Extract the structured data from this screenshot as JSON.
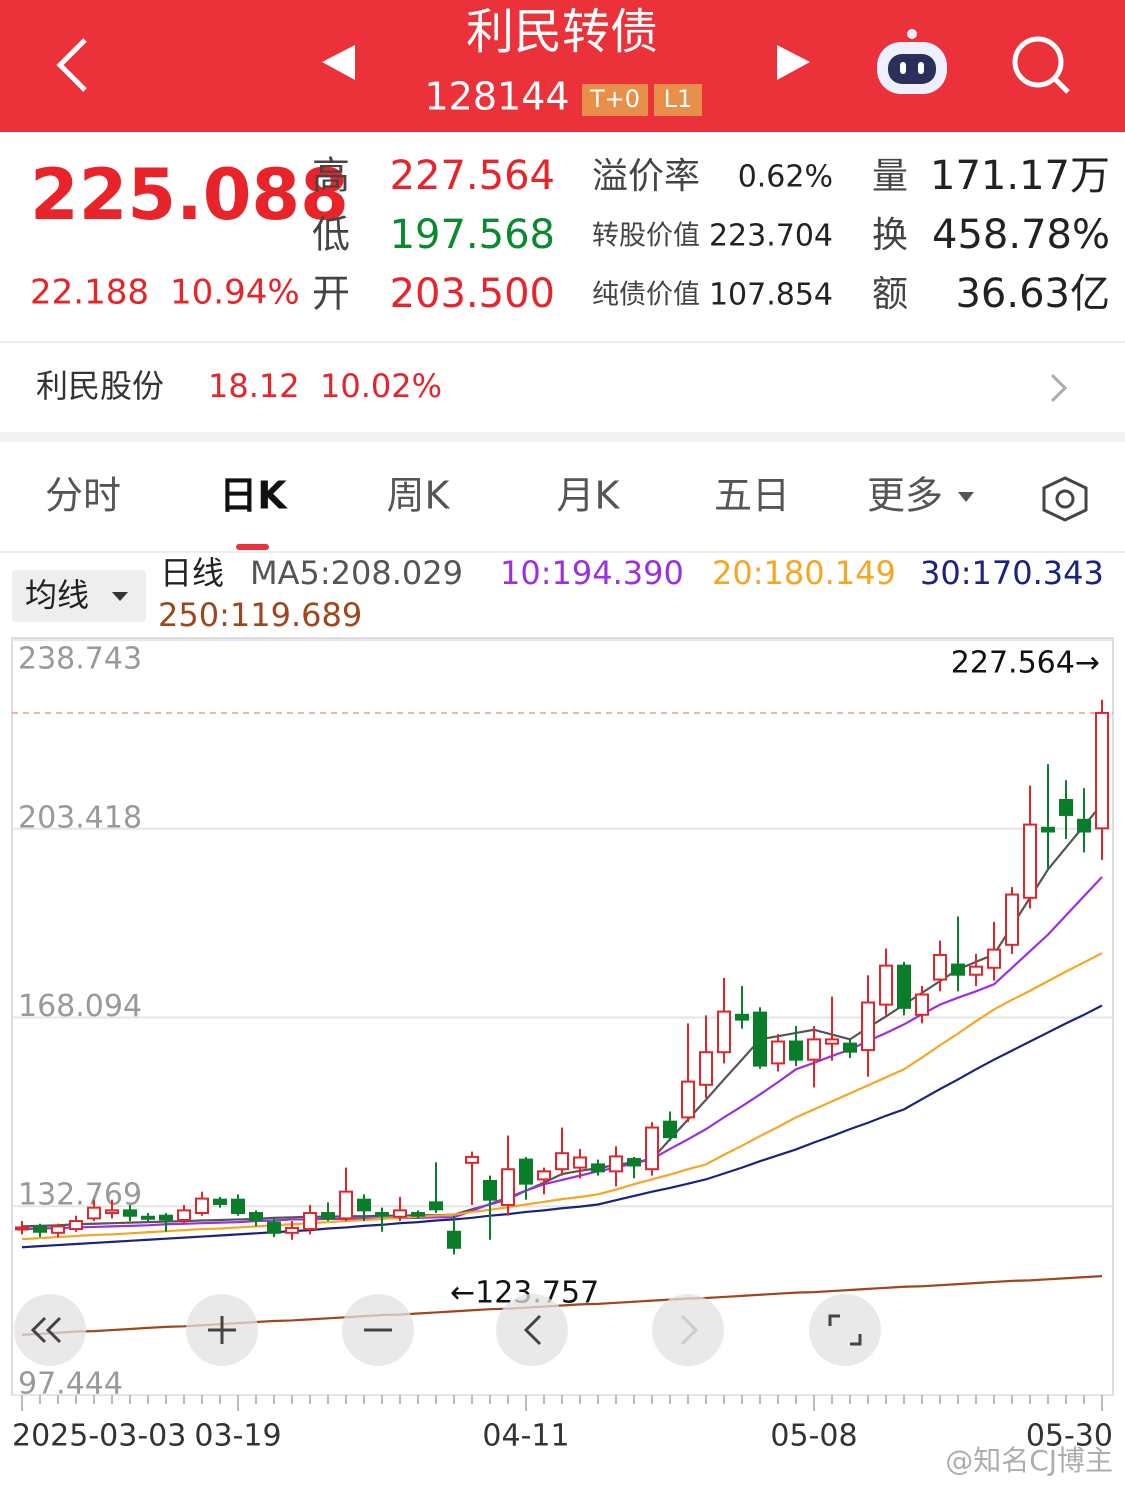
{
  "header": {
    "title": "利民转债",
    "code": "128144",
    "tags": [
      "T+0",
      "L1"
    ]
  },
  "quote": {
    "price": "225.088",
    "change": "22.188",
    "change_pct": "10.94%",
    "fields": [
      {
        "label": "高",
        "value": "227.564"
      },
      {
        "label": "低",
        "value": "197.568"
      },
      {
        "label": "开",
        "value": "203.500"
      }
    ],
    "metrics": [
      {
        "label": "溢价率",
        "value": "0.62%"
      },
      {
        "label": "转股价值",
        "value": "223.704"
      },
      {
        "label": "纯债价值",
        "value": "107.854"
      }
    ],
    "stats": [
      {
        "label": "量",
        "value": "171.17万"
      },
      {
        "label": "换",
        "value": "458.78%"
      },
      {
        "label": "额",
        "value": "36.63亿"
      }
    ]
  },
  "stock": {
    "name": "利民股份",
    "price": "18.12",
    "change_pct": "10.02%"
  },
  "tabs": [
    "分时",
    "日K",
    "周K",
    "月K",
    "五日",
    "更多"
  ],
  "ma_selector": "均线",
  "ma_period": "日线",
  "chart_data": {
    "type": "candlestick",
    "categories": [
      "2025-03-03",
      null,
      null,
      null,
      null,
      null,
      null,
      null,
      null,
      null,
      null,
      null,
      "03-19",
      null,
      null,
      null,
      null,
      null,
      null,
      null,
      null,
      null,
      null,
      null,
      null,
      null,
      null,
      null,
      "04-11",
      null,
      null,
      null,
      null,
      null,
      null,
      null,
      null,
      null,
      null,
      null,
      null,
      null,
      null,
      null,
      "05-08",
      null,
      null,
      null,
      null,
      null,
      null,
      null,
      null,
      null,
      null,
      null,
      null,
      null,
      null,
      null,
      "05-30"
    ],
    "open": [
      128.5,
      128.8,
      127.8,
      128.5,
      130.5,
      131.5,
      132,
      130.8,
      131,
      130.2,
      131.5,
      134,
      134,
      131.5,
      129.7,
      127.8,
      128.5,
      131.5,
      130.5,
      134,
      131.5,
      130.8,
      131.5,
      133.5,
      128,
      140.9,
      137.5,
      133,
      141.5,
      137.8,
      139.7,
      140,
      140.6,
      139.3,
      141.6,
      139.7,
      148.6,
      149.4,
      155.5,
      161.6,
      168.6,
      169,
      159.5,
      163.6,
      160.2,
      163.2,
      163.2,
      162,
      170.5,
      177.8,
      168.6,
      175.2,
      178,
      176.1,
      177.4,
      181.7,
      190.5,
      203.6,
      208.8,
      205.1,
      203.5
    ],
    "high": [
      130,
      129.5,
      129.5,
      131,
      134,
      134,
      133,
      131.5,
      131.5,
      133,
      135.5,
      134.5,
      135,
      132,
      130.5,
      130,
      133,
      133.5,
      140,
      135,
      132.5,
      134.5,
      132,
      141,
      131,
      143,
      138.5,
      146,
      142,
      140,
      147.5,
      143.5,
      141.5,
      144,
      142,
      148.5,
      150.5,
      167,
      168.5,
      175.5,
      174,
      170,
      165,
      166.5,
      166.5,
      172,
      164,
      176,
      181,
      178.5,
      174,
      182.5,
      187,
      180,
      186,
      192.5,
      211.5,
      215.5,
      212.5,
      211,
      227.564
    ],
    "low": [
      127.5,
      127,
      127,
      128,
      130,
      130.5,
      130,
      130,
      128,
      129.5,
      131,
      132.5,
      131,
      129,
      127,
      126.5,
      127.5,
      130,
      130,
      130,
      128,
      130,
      130.5,
      131.5,
      123.757,
      133,
      126.5,
      131,
      134,
      135,
      138.5,
      138,
      138.5,
      136.5,
      138,
      138.5,
      145,
      148.5,
      153,
      159.5,
      166,
      158.5,
      158,
      159,
      155,
      160,
      160.5,
      157,
      168.5,
      168.5,
      167,
      173,
      173,
      174,
      175,
      180,
      188.5,
      196,
      201.5,
      199,
      197.568
    ],
    "close": [
      128.8,
      128,
      129,
      130,
      132.5,
      132,
      131,
      130.5,
      130.3,
      132,
      134.2,
      133.2,
      131.5,
      130.2,
      127.8,
      128.7,
      131.5,
      130.5,
      135.5,
      132,
      131,
      132,
      131,
      132.2,
      125,
      142,
      134,
      139.7,
      137,
      139.3,
      142.7,
      141.9,
      139.3,
      142.1,
      140.4,
      147.5,
      145.7,
      156.1,
      161.6,
      169.2,
      167.7,
      159.1,
      163.6,
      160.2,
      164,
      164,
      161.7,
      170.9,
      177.8,
      169.9,
      172.4,
      179.8,
      176.1,
      177.6,
      180.8,
      191.1,
      204.2,
      202.9,
      206,
      202.9,
      225.088
    ],
    "series": [
      {
        "name": "MA5:208.029",
        "color": "#555555",
        "values": [
          129.0,
          129.1,
          129.2,
          129.4,
          129.5,
          129.6,
          129.7,
          129.8,
          129.9,
          130.0,
          130.1,
          130.2,
          130.3,
          130.4,
          130.6,
          130.7,
          130.8,
          130.8,
          130.9,
          130.9,
          131.0,
          131.0,
          131.1,
          131.1,
          131.2,
          132.2,
          133.1,
          134.1,
          135.7,
          137.2,
          138.8,
          139.4,
          139.9,
          140.5,
          141.0,
          141.6,
          145.3,
          149.0,
          152.7,
          156.5,
          160.2,
          164.0,
          164.6,
          165.2,
          165.8,
          164.9,
          164.0,
          166.2,
          168.3,
          170.5,
          172.7,
          174.9,
          177.1,
          178.5,
          179.9,
          185.2,
          190.5,
          195.8,
          199.9,
          204.0,
          208.029
        ]
      },
      {
        "name": "10:194.390",
        "color": "#9b30e0",
        "values": [
          128.5,
          128.6,
          128.7,
          128.8,
          128.9,
          129.0,
          129.1,
          129.2,
          129.4,
          129.5,
          129.6,
          129.7,
          129.8,
          130.0,
          130.1,
          130.3,
          130.3,
          130.4,
          130.4,
          130.5,
          130.5,
          130.6,
          130.6,
          130.7,
          130.7,
          131.9,
          133.2,
          134.4,
          135.7,
          136.9,
          137.7,
          138.5,
          139.3,
          140.0,
          140.8,
          141.6,
          143.5,
          145.3,
          147.2,
          149.4,
          151.5,
          153.7,
          156.0,
          158.4,
          159.6,
          160.9,
          162.1,
          163.7,
          165.2,
          166.8,
          168.7,
          170.5,
          171.8,
          173.0,
          174.3,
          177.4,
          180.5,
          183.6,
          187.2,
          190.8,
          194.39
        ]
      },
      {
        "name": "20:180.149",
        "color": "#f5a623",
        "values": [
          126.6,
          126.8,
          127.0,
          127.2,
          127.4,
          127.5,
          127.7,
          127.9,
          128.1,
          128.3,
          128.5,
          128.6,
          128.8,
          129.0,
          129.2,
          129.4,
          129.6,
          129.8,
          130.0,
          130.2,
          130.4,
          130.6,
          130.8,
          131.0,
          131.2,
          131.7,
          132.1,
          132.6,
          133.1,
          133.6,
          134.1,
          134.5,
          135.0,
          135.9,
          136.9,
          137.8,
          138.7,
          139.7,
          140.6,
          142.4,
          144.1,
          145.9,
          147.6,
          149.4,
          150.9,
          152.4,
          153.9,
          155.4,
          156.9,
          158.4,
          160.6,
          162.9,
          165.1,
          167.4,
          169.6,
          171.4,
          173.1,
          174.9,
          176.7,
          178.4,
          180.149
        ]
      },
      {
        "name": "30:170.343",
        "color": "#1a237e",
        "values": [
          125.1,
          125.3,
          125.5,
          125.7,
          125.9,
          126.1,
          126.3,
          126.5,
          126.7,
          126.9,
          127.1,
          127.3,
          127.5,
          127.7,
          127.9,
          128.1,
          128.3,
          128.6,
          128.8,
          129.1,
          129.3,
          129.6,
          129.8,
          130.1,
          130.3,
          130.6,
          131.0,
          131.3,
          131.7,
          132.0,
          132.4,
          132.7,
          133.1,
          133.9,
          134.7,
          135.5,
          136.2,
          137.0,
          137.8,
          138.9,
          140.0,
          141.2,
          142.3,
          143.4,
          144.7,
          145.9,
          147.2,
          148.4,
          149.7,
          150.9,
          152.8,
          154.7,
          156.5,
          158.4,
          160.2,
          161.9,
          163.6,
          165.3,
          167.0,
          168.6,
          170.343
        ]
      },
      {
        "name": "250:119.689",
        "color": "#a0461c",
        "values": [
          108.7,
          108.9,
          109.1,
          109.3,
          109.4,
          109.6,
          109.8,
          110.0,
          110.2,
          110.3,
          110.5,
          110.7,
          110.9,
          111.1,
          111.3,
          111.4,
          111.6,
          111.8,
          112.0,
          112.2,
          112.4,
          112.5,
          112.7,
          112.9,
          113.1,
          113.3,
          113.5,
          113.6,
          113.8,
          114.0,
          114.2,
          114.4,
          114.5,
          114.7,
          114.9,
          115.1,
          115.3,
          115.5,
          115.6,
          115.8,
          116.0,
          116.2,
          116.4,
          116.6,
          116.7,
          116.9,
          117.1,
          117.3,
          117.5,
          117.7,
          117.8,
          118.0,
          118.2,
          118.4,
          118.6,
          118.8,
          118.9,
          119.1,
          119.3,
          119.5,
          119.689
        ]
      }
    ],
    "ylim": [
      97.444,
      238.743
    ],
    "yticks": [
      97.444,
      132.769,
      168.094,
      203.418,
      238.743
    ],
    "grid": true,
    "price_line": 225.088,
    "up_color": "#e0262c",
    "down_color": "#0a7d2a",
    "annotations": [
      "227.564→",
      "←123.757"
    ]
  },
  "watermark": "@知名CJ博主"
}
